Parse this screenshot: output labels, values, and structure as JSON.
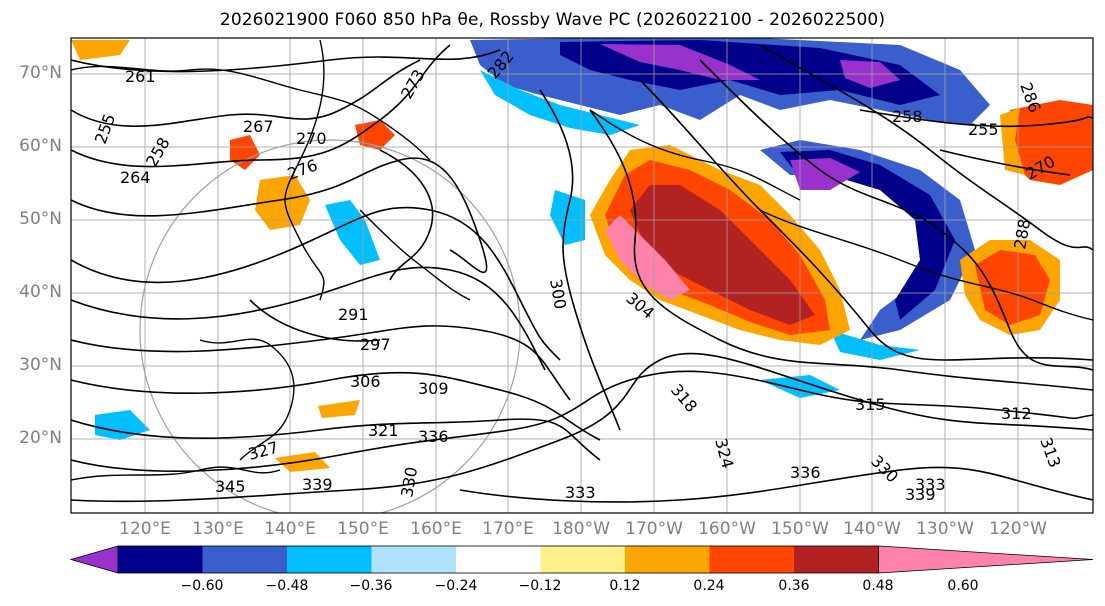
{
  "title": "2026021900 F060 850 hPa θe, Rossby Wave PC (2026022100 - 2026022500)",
  "lat_labels": [
    "70°N",
    "60°N",
    "50°N",
    "40°N",
    "30°N",
    "20°N"
  ],
  "lon_labels": [
    "120°E",
    "130°E",
    "140°E",
    "150°E",
    "160°E",
    "170°E",
    "180°W",
    "170°W",
    "160°W",
    "150°W",
    "140°W",
    "130°W",
    "120°W"
  ],
  "contour_labels": [
    "261",
    "255",
    "258",
    "264",
    "267",
    "270",
    "273",
    "282",
    "276",
    "291",
    "297",
    "306",
    "309",
    "321",
    "336",
    "327",
    "345",
    "339",
    "330",
    "333",
    "318",
    "304",
    "300",
    "315",
    "312",
    "324",
    "258",
    "255",
    "270",
    "288",
    "286",
    "313",
    "339",
    "336",
    "330",
    "333"
  ],
  "colorbar": {
    "ticks": [
      "−0.60",
      "−0.48",
      "−0.36",
      "−0.24",
      "−0.12",
      "0.12",
      "0.24",
      "0.36",
      "0.48",
      "0.60"
    ],
    "colors": [
      "#9932cc",
      "#00008b",
      "#3a5fcd",
      "#00bfff",
      "#b0e2ff",
      "#ffffff",
      "#fff08c",
      "#ffa500",
      "#ff4500",
      "#b22222",
      "#ff82ab"
    ]
  },
  "colors": {
    "land_outline": "#000000",
    "grid": "#a0a0a0",
    "axis_label": "#808080"
  }
}
